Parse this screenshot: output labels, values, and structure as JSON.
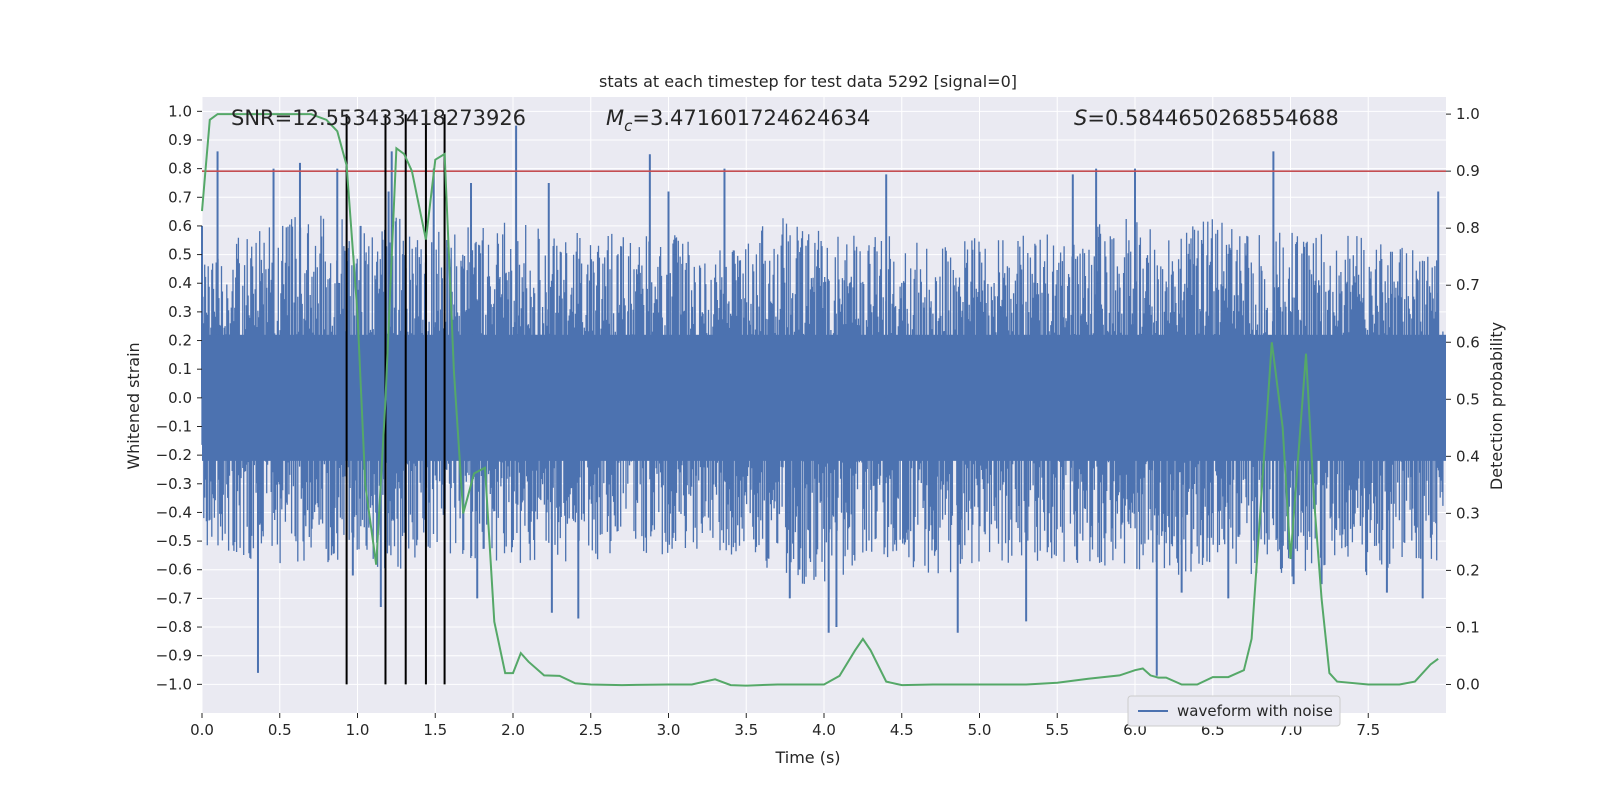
{
  "chart_data": {
    "type": "line",
    "title": "stats at each timestep for test data 5292 [signal=0]",
    "xlabel": "Time (s)",
    "ylabel": "Whitened strain",
    "y2label": "Detection probability",
    "xlim": [
      0.0,
      8.0
    ],
    "ylim": [
      -1.1,
      1.05
    ],
    "y2lim": [
      -0.05,
      1.03
    ],
    "x_ticks": [
      "0.0",
      "0.5",
      "1.0",
      "1.5",
      "2.0",
      "2.5",
      "3.0",
      "3.5",
      "4.0",
      "4.5",
      "5.0",
      "5.5",
      "6.0",
      "6.5",
      "7.0",
      "7.5"
    ],
    "y_ticks": [
      "1.0",
      "0.9",
      "0.8",
      "0.7",
      "0.6",
      "0.5",
      "0.4",
      "0.3",
      "0.2",
      "0.1",
      "0.0",
      "-0.1",
      "-0.2",
      "-0.3",
      "-0.4",
      "-0.5",
      "-0.6",
      "-0.7",
      "-0.8",
      "-0.9",
      "-1.0"
    ],
    "y2_ticks": [
      "1.0",
      "0.9",
      "0.8",
      "0.7",
      "0.6",
      "0.5",
      "0.4",
      "0.3",
      "0.2",
      "0.1",
      "0.0"
    ],
    "annotations": {
      "snr": "SNR=12.553433418273926",
      "mc_symbol": "M",
      "mc_sub": "c",
      "mc_value": "=3.471601724624634",
      "s_symbol": "S",
      "s_value": "=0.5844650268554688"
    },
    "legend": {
      "label": "waveform with noise",
      "position": "lower-right"
    },
    "colors": {
      "waveform": "#4c72b0",
      "probability": "#55a868",
      "threshold": "#c44e52",
      "markers": "#000000",
      "background": "#eaeaf2",
      "grid": "#ffffff"
    },
    "threshold": 0.9,
    "vertical_markers": [
      0.93,
      1.18,
      1.31,
      1.44,
      1.56
    ],
    "waveform_envelope": {
      "t": [
        0.0,
        0.25,
        0.5,
        0.75,
        1.0,
        1.25,
        1.5,
        1.75,
        2.0,
        2.25,
        2.5,
        2.75,
        3.0,
        3.25,
        3.5,
        3.75,
        4.0,
        4.25,
        4.5,
        4.75,
        5.0,
        5.25,
        5.5,
        5.75,
        6.0,
        6.25,
        6.5,
        6.75,
        7.0,
        7.25,
        7.5,
        7.75,
        8.0
      ],
      "upper": [
        0.45,
        0.55,
        0.6,
        0.62,
        0.58,
        0.6,
        0.55,
        0.6,
        0.6,
        0.55,
        0.55,
        0.55,
        0.55,
        0.5,
        0.55,
        0.6,
        0.55,
        0.55,
        0.55,
        0.5,
        0.55,
        0.55,
        0.55,
        0.6,
        0.6,
        0.55,
        0.6,
        0.55,
        0.55,
        0.55,
        0.55,
        0.5,
        0.5
      ],
      "lower": [
        -0.5,
        -0.55,
        -0.55,
        -0.55,
        -0.55,
        -0.6,
        -0.5,
        -0.55,
        -0.55,
        -0.55,
        -0.55,
        -0.5,
        -0.55,
        -0.5,
        -0.55,
        -0.6,
        -0.65,
        -0.55,
        -0.55,
        -0.6,
        -0.55,
        -0.55,
        -0.55,
        -0.55,
        -0.6,
        -0.6,
        -0.55,
        -0.6,
        -0.6,
        -0.55,
        -0.6,
        -0.55,
        -0.55
      ],
      "spikes": [
        [
          0.0,
          0.6
        ],
        [
          0.1,
          0.86
        ],
        [
          0.36,
          -0.96
        ],
        [
          0.46,
          0.8
        ],
        [
          0.63,
          0.82
        ],
        [
          0.87,
          0.8
        ],
        [
          0.97,
          -0.62
        ],
        [
          1.02,
          0.6
        ],
        [
          1.15,
          -0.73
        ],
        [
          1.2,
          0.72
        ],
        [
          1.22,
          0.86
        ],
        [
          1.49,
          0.8
        ],
        [
          1.73,
          0.75
        ],
        [
          1.77,
          -0.7
        ],
        [
          2.02,
          0.95
        ],
        [
          2.23,
          0.75
        ],
        [
          2.25,
          -0.75
        ],
        [
          2.42,
          -0.77
        ],
        [
          2.88,
          0.85
        ],
        [
          3.0,
          0.72
        ],
        [
          3.36,
          0.8
        ],
        [
          3.78,
          -0.7
        ],
        [
          4.03,
          -0.82
        ],
        [
          4.08,
          -0.8
        ],
        [
          4.4,
          0.78
        ],
        [
          4.86,
          -0.82
        ],
        [
          5.3,
          -0.78
        ],
        [
          5.6,
          0.78
        ],
        [
          5.75,
          0.8
        ],
        [
          6.0,
          0.8
        ],
        [
          6.14,
          -0.97
        ],
        [
          6.3,
          -0.68
        ],
        [
          6.6,
          -0.7
        ],
        [
          6.89,
          0.86
        ],
        [
          7.02,
          -0.65
        ],
        [
          7.2,
          -0.65
        ],
        [
          7.62,
          -0.68
        ],
        [
          7.85,
          -0.7
        ],
        [
          7.95,
          0.72
        ]
      ]
    },
    "detection_probability": {
      "t": [
        0.0,
        0.05,
        0.1,
        0.2,
        0.3,
        0.5,
        0.7,
        0.8,
        0.87,
        0.93,
        1.0,
        1.05,
        1.12,
        1.18,
        1.25,
        1.3,
        1.35,
        1.44,
        1.5,
        1.56,
        1.62,
        1.68,
        1.75,
        1.82,
        1.88,
        1.95,
        2.0,
        2.05,
        2.1,
        2.2,
        2.3,
        2.4,
        2.5,
        2.7,
        3.0,
        3.15,
        3.3,
        3.4,
        3.5,
        3.7,
        3.9,
        4.0,
        4.1,
        4.2,
        4.25,
        4.3,
        4.4,
        4.5,
        4.7,
        5.0,
        5.3,
        5.5,
        5.7,
        5.9,
        6.0,
        6.05,
        6.1,
        6.15,
        6.2,
        6.3,
        6.4,
        6.5,
        6.55,
        6.6,
        6.7,
        6.75,
        6.8,
        6.88,
        6.95,
        7.0,
        7.1,
        7.15,
        7.2,
        7.25,
        7.3,
        7.5,
        7.7,
        7.8,
        7.9,
        7.95
      ],
      "p": [
        0.83,
        0.99,
        1.0,
        1.0,
        1.0,
        1.0,
        1.0,
        0.99,
        0.97,
        0.91,
        0.65,
        0.35,
        0.21,
        0.5,
        0.94,
        0.93,
        0.9,
        0.78,
        0.92,
        0.93,
        0.55,
        0.3,
        0.37,
        0.38,
        0.11,
        0.02,
        0.02,
        0.055,
        0.04,
        0.016,
        0.015,
        0.002,
        0.0,
        -0.001,
        0.0,
        0.0,
        0.009,
        -0.001,
        -0.002,
        0.0,
        0.0,
        0.0,
        0.015,
        0.06,
        0.08,
        0.06,
        0.005,
        -0.001,
        0.0,
        0.0,
        0.0,
        0.003,
        0.01,
        0.016,
        0.025,
        0.028,
        0.016,
        0.012,
        0.012,
        0.0,
        0.0,
        0.013,
        0.013,
        0.013,
        0.025,
        0.08,
        0.28,
        0.6,
        0.45,
        0.22,
        0.58,
        0.33,
        0.15,
        0.02,
        0.005,
        0.0,
        0.0,
        0.005,
        0.035,
        0.045
      ]
    }
  }
}
